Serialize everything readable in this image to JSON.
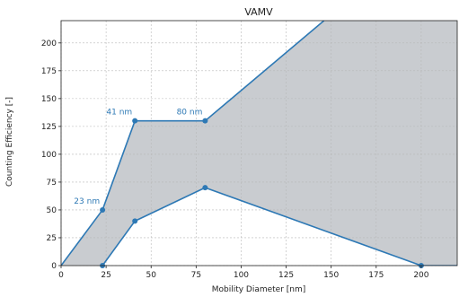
{
  "chart_data": {
    "type": "area",
    "title": "VAMV",
    "xlabel": "Mobility Diameter [nm]",
    "ylabel": "Counting Efficiency [-]",
    "xlim": [
      0,
      220
    ],
    "ylim": [
      0,
      220
    ],
    "xticks": [
      0,
      25,
      50,
      75,
      100,
      125,
      150,
      175,
      200
    ],
    "yticks": [
      0,
      25,
      50,
      75,
      100,
      125,
      150,
      175,
      200
    ],
    "grid": true,
    "colors": {
      "line": "#2E79B5",
      "fill": "#C9CCD0",
      "annotation": "#2E79B5"
    },
    "series": [
      {
        "x": [
          0,
          23,
          41,
          80,
          146
        ],
        "y": [
          0,
          50,
          130,
          130,
          220
        ],
        "markers": [
          false,
          true,
          true,
          true,
          false
        ]
      },
      {
        "x": [
          23,
          41,
          80,
          200,
          220
        ],
        "y": [
          0,
          40,
          70,
          0,
          0
        ],
        "markers": [
          true,
          true,
          true,
          true,
          false
        ]
      }
    ],
    "annotations": [
      {
        "text": "23 nm",
        "x": 23,
        "y": 50
      },
      {
        "text": "41 nm",
        "x": 41,
        "y": 130
      },
      {
        "text": "80 nm",
        "x": 80,
        "y": 130
      }
    ]
  }
}
